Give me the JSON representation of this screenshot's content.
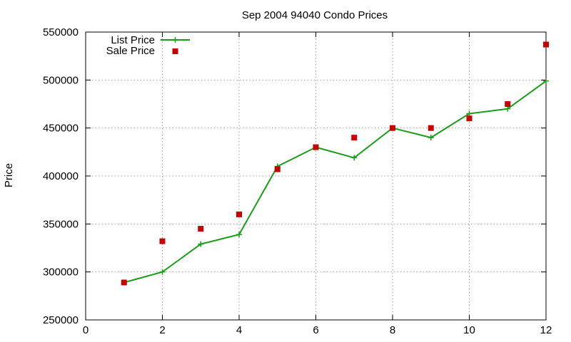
{
  "chart_data": {
    "type": "line",
    "title": "Sep 2004 94040 Condo Prices",
    "xlabel": "",
    "ylabel": "Price",
    "xlim": [
      0,
      12
    ],
    "ylim": [
      250000,
      550000
    ],
    "xticks": [
      0,
      2,
      4,
      6,
      8,
      10,
      12
    ],
    "yticks": [
      250000,
      300000,
      350000,
      400000,
      450000,
      500000,
      550000
    ],
    "grid": true,
    "legend_position": "top-left",
    "series": [
      {
        "name": "List Price",
        "style": "line-with-plus-markers",
        "color": "#1a9e1a",
        "x": [
          1,
          2,
          3,
          4,
          5,
          6,
          7,
          8,
          9,
          10,
          11,
          12
        ],
        "y": [
          289000,
          300000,
          329000,
          339000,
          410000,
          430000,
          419000,
          450000,
          440000,
          465000,
          470000,
          499000
        ]
      },
      {
        "name": "Sale Price",
        "style": "square-points",
        "color": "#c80000",
        "x": [
          1,
          2,
          3,
          4,
          5,
          6,
          7,
          8,
          9,
          10,
          11,
          12
        ],
        "y": [
          289000,
          332000,
          345000,
          360000,
          407000,
          430000,
          440000,
          450000,
          450000,
          460000,
          475000,
          537000
        ]
      }
    ]
  }
}
